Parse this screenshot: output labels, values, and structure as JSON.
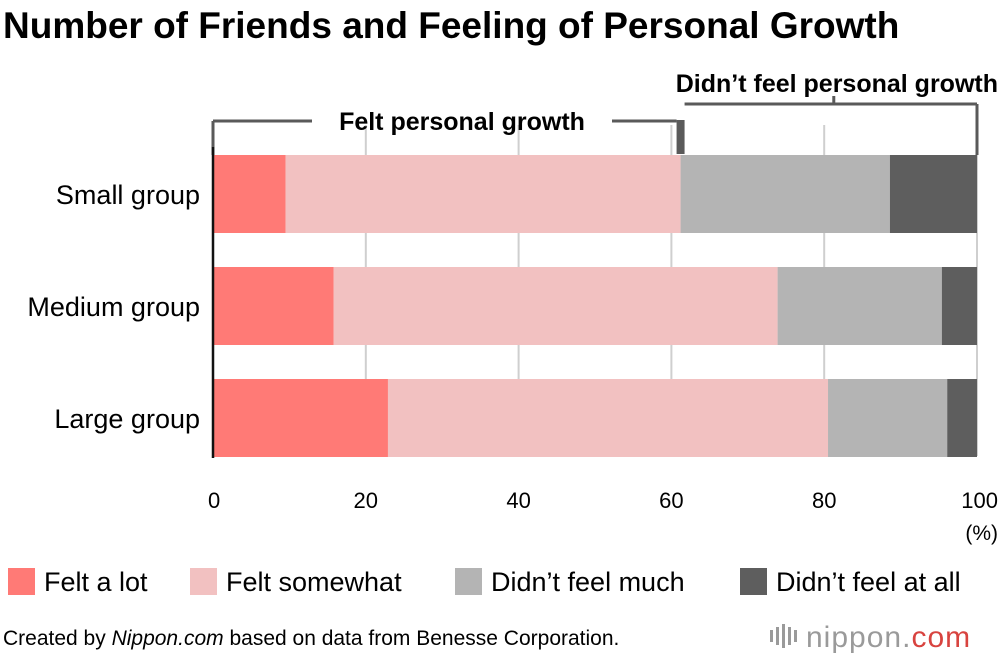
{
  "chart_data": {
    "type": "bar",
    "orientation": "horizontal",
    "stacked": true,
    "title": "Number of Friends and Feeling of Personal Growth",
    "categories": [
      "Small group",
      "Medium group",
      "Large group"
    ],
    "series": [
      {
        "name": "Felt a lot",
        "color": "#ff7a76",
        "values": [
          9.5,
          15.8,
          22.9
        ]
      },
      {
        "name": "Felt somewhat",
        "color": "#f2c1c1",
        "values": [
          51.7,
          58.1,
          57.6
        ]
      },
      {
        "name": "Didn’t feel much",
        "color": "#b4b4b4",
        "values": [
          27.4,
          21.5,
          15.6
        ]
      },
      {
        "name": "Didn’t feel at all",
        "color": "#5e5e5e",
        "values": [
          11.4,
          4.6,
          3.9
        ]
      }
    ],
    "x_ticks": [
      "0",
      "20",
      "40",
      "60",
      "80",
      "100"
    ],
    "xlim": [
      0,
      100
    ],
    "x_unit": "(%)",
    "grid": true,
    "legend_position": "bottom",
    "brackets": [
      {
        "label": "Felt personal growth",
        "from": 0,
        "to": 61.2
      },
      {
        "label": "Didn’t feel personal growth",
        "from": 61.2,
        "to": 100
      }
    ]
  },
  "footer": {
    "credit_prefix": "Created by ",
    "credit_site": "Nippon.com",
    "credit_suffix": " based on data from Benesse Corporation.",
    "brand_main": "nippon.",
    "brand_accent": "com",
    "brand_accent_color": "#d8433f"
  }
}
